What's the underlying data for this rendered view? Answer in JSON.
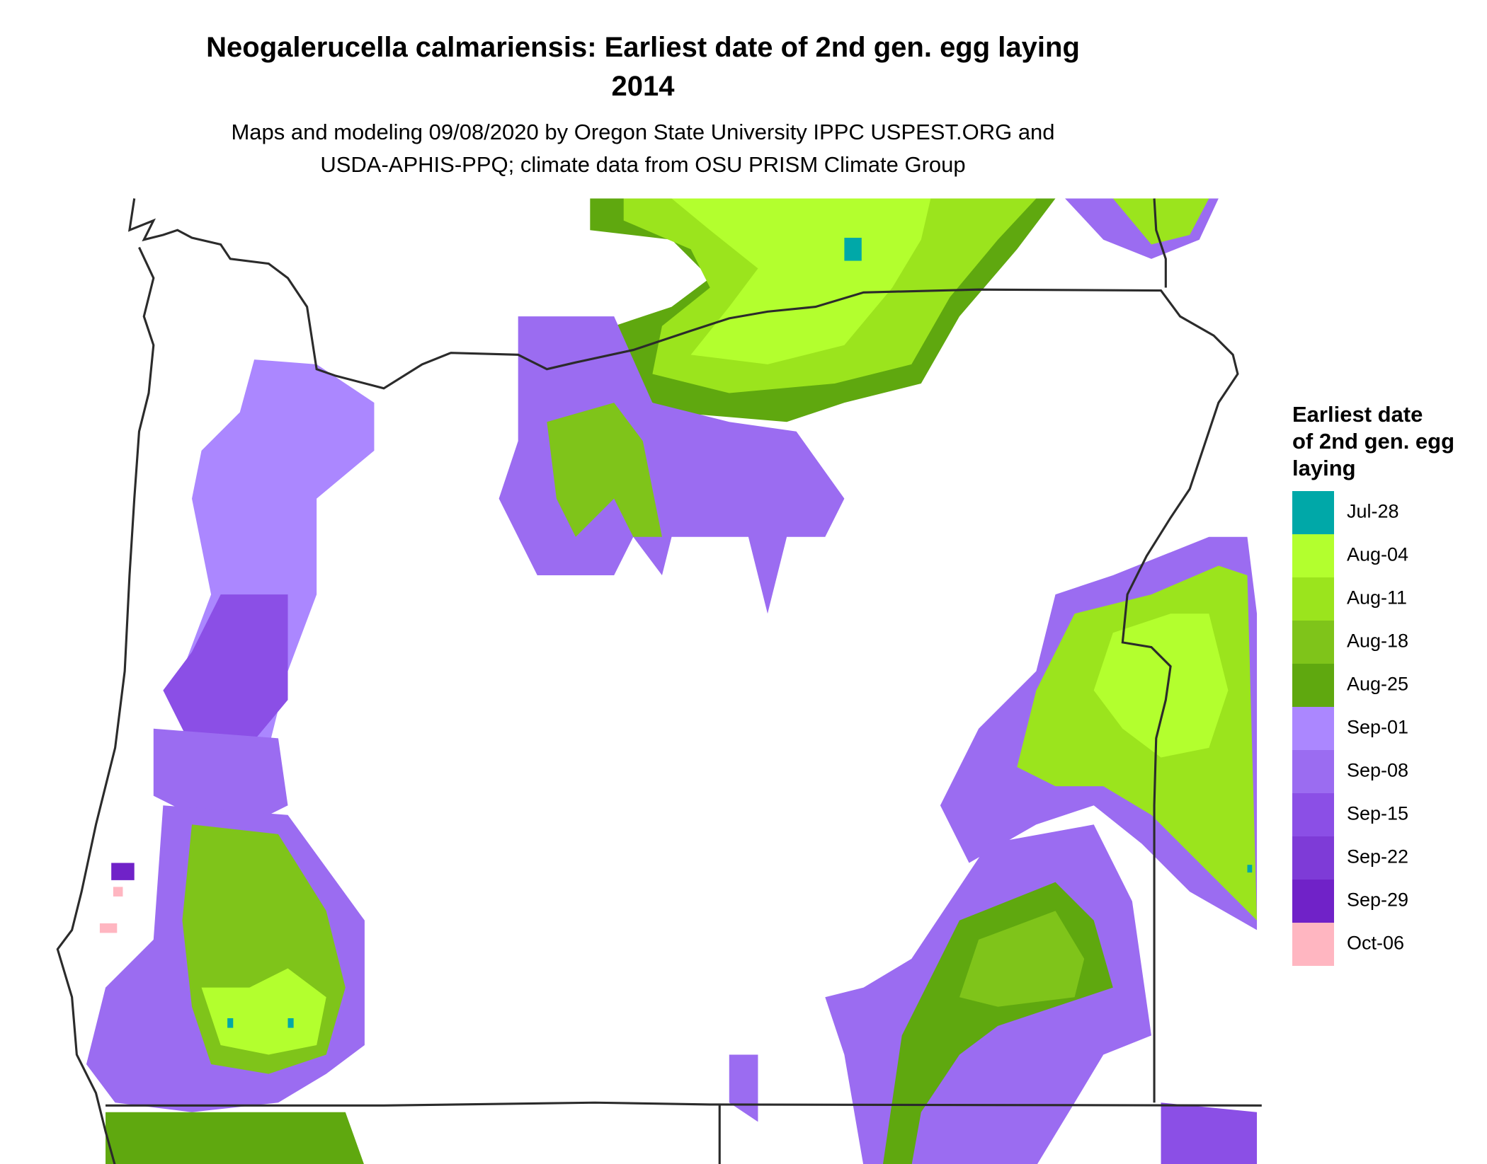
{
  "title": [
    "Neogalerucella calmariensis: Earliest date of 2nd gen. egg laying",
    "2014"
  ],
  "subtitle": [
    "Maps and modeling 09/08/2020 by Oregon State University IPPC USPEST.ORG and",
    "USDA-APHIS-PPQ; climate data from OSU PRISM Climate Group"
  ],
  "legend": {
    "title": [
      "Earliest date",
      "of 2nd gen. egg",
      "laying"
    ],
    "items": [
      {
        "label": "Jul-28",
        "color": "#00a8a8"
      },
      {
        "label": "Aug-04",
        "color": "#b3ff2e"
      },
      {
        "label": "Aug-11",
        "color": "#9be41d"
      },
      {
        "label": "Aug-18",
        "color": "#7fc41a"
      },
      {
        "label": "Aug-25",
        "color": "#5fa80f"
      },
      {
        "label": "Sep-01",
        "color": "#ab87ff"
      },
      {
        "label": "Sep-08",
        "color": "#9b6cf1"
      },
      {
        "label": "Sep-15",
        "color": "#8b4fe6"
      },
      {
        "label": "Sep-22",
        "color": "#7e3bd7"
      },
      {
        "label": "Sep-29",
        "color": "#7022c8"
      },
      {
        "label": "Oct-06",
        "color": "#ffb6c1"
      }
    ]
  }
}
